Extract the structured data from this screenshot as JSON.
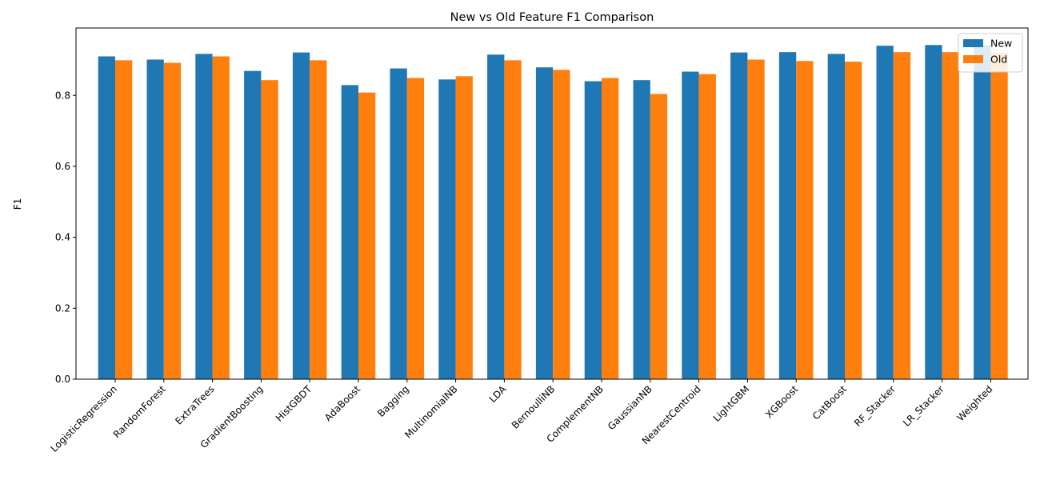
{
  "chart_data": {
    "type": "bar",
    "title": "New vs Old Feature F1 Comparison",
    "xlabel": "",
    "ylabel": "F1",
    "ylim": [
      0,
      0.99
    ],
    "yticks": [
      0.0,
      0.2,
      0.4,
      0.6,
      0.8
    ],
    "ytick_labels": [
      "0.0",
      "0.2",
      "0.4",
      "0.6",
      "0.8"
    ],
    "grid": false,
    "legend_position": "top-right",
    "categories": [
      "LogisticRegression",
      "RandomForest",
      "ExtraTrees",
      "GradientBoosting",
      "HistGBDT",
      "AdaBoost",
      "Bagging",
      "MultinomialNB",
      "LDA",
      "BernoulliNB",
      "ComplementNB",
      "GaussianNB",
      "NearestCentroid",
      "LightGBM",
      "XGBoost",
      "CatBoost",
      "RF_Stacker",
      "LR_Stacker",
      "Weighted"
    ],
    "series": [
      {
        "name": "New",
        "color": "#1f77b4",
        "values": [
          0.91,
          0.901,
          0.917,
          0.869,
          0.921,
          0.829,
          0.876,
          0.845,
          0.915,
          0.879,
          0.84,
          0.843,
          0.867,
          0.921,
          0.922,
          0.917,
          0.94,
          0.942,
          0.942
        ]
      },
      {
        "name": "Old",
        "color": "#ff7f0e",
        "values": [
          0.899,
          0.892,
          0.91,
          0.843,
          0.899,
          0.808,
          0.849,
          0.854,
          0.899,
          0.872,
          0.849,
          0.804,
          0.86,
          0.901,
          0.897,
          0.895,
          0.922,
          0.922,
          0.92
        ]
      }
    ]
  }
}
